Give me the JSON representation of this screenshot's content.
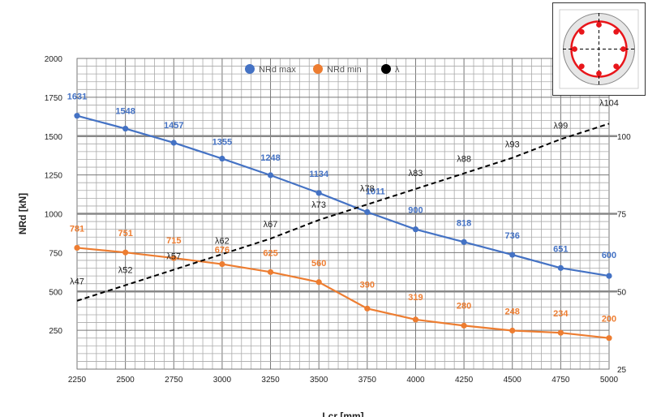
{
  "chart_data": {
    "type": "line",
    "title": "",
    "xlabel": "Lcr [mm]",
    "ylabel": "NRd [kN]",
    "xlim": [
      2250,
      5000
    ],
    "ylim": [
      0,
      2000
    ],
    "y2lim": [
      25,
      125
    ],
    "x": [
      2250,
      2500,
      2750,
      3000,
      3250,
      3500,
      3750,
      4000,
      4250,
      4500,
      4750,
      5000
    ],
    "x_ticks": [
      "2250",
      "2500",
      "2750",
      "3000",
      "3250",
      "3500",
      "3750",
      "4000",
      "4250",
      "4500",
      "4750",
      "5000"
    ],
    "y_ticks": [
      "2000",
      "1750",
      "1500",
      "1250",
      "1000",
      "750",
      "500",
      "250"
    ],
    "y2_ticks": [
      "100",
      "75",
      "50",
      "25"
    ],
    "grid": true,
    "legend_position": "top-center",
    "series": [
      {
        "name": "NRd max",
        "color": "#4472c4",
        "axis": "left",
        "values": [
          1631,
          1548,
          1457,
          1355,
          1248,
          1134,
          1011,
          900,
          818,
          736,
          651,
          600
        ],
        "labels": [
          "1631",
          "1548",
          "1457",
          "1355",
          "1248",
          "1134",
          "1011",
          "900",
          "818",
          "736",
          "651",
          "600"
        ]
      },
      {
        "name": "NRd min",
        "color": "#ed7d31",
        "axis": "left",
        "values": [
          781,
          751,
          715,
          676,
          625,
          560,
          390,
          319,
          280,
          248,
          234,
          200
        ],
        "labels": [
          "781",
          "751",
          "715",
          "676",
          "625",
          "560",
          "390",
          "319",
          "280",
          "248",
          "234",
          "200"
        ]
      },
      {
        "name": "λ",
        "color": "#000000",
        "axis": "right",
        "dashed": true,
        "values": [
          47,
          52,
          57,
          62,
          67,
          73,
          78,
          83,
          88,
          93,
          99,
          104
        ],
        "labels": [
          "λ47",
          "λ52",
          "λ57",
          "λ62",
          "λ67",
          "λ73",
          "λ78",
          "λ83",
          "λ88",
          "λ93",
          "λ99",
          "λ104"
        ]
      }
    ]
  },
  "inset": {
    "description_icon": "circular-column-section-icon",
    "ring_color": "#e8161b",
    "bar_count": 8
  }
}
